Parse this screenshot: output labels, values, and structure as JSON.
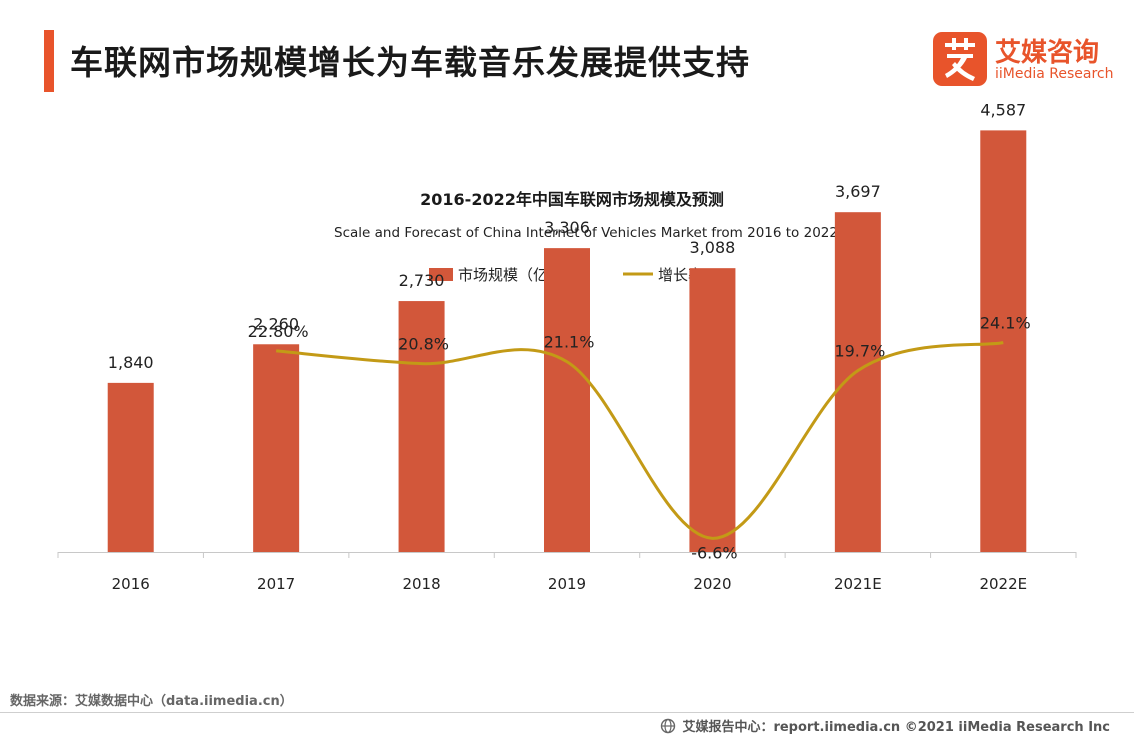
{
  "header": {
    "title": "车联网市场规模增长为车载音乐发展提供支持"
  },
  "logo": {
    "cn": "艾媒咨询",
    "en": "iiMedia Research",
    "icon": "ai-character-logo"
  },
  "colors": {
    "accent": "#e8542b",
    "bar": "#d2573a",
    "line": "#c39a16"
  },
  "chart_data": {
    "type": "bar",
    "title": "2016-2022年中国车联网市场规模及预测",
    "subtitle": "Scale and Forecast of China Internet of Vehicles Market from 2016 to 2022",
    "categories": [
      "2016",
      "2017",
      "2018",
      "2019",
      "2020",
      "2021E",
      "2022E"
    ],
    "series": [
      {
        "name": "市场规模（亿元）",
        "type": "bar",
        "values": [
          1840,
          2260,
          2730,
          3306,
          3088,
          3697,
          4587
        ],
        "labels": [
          "1,840",
          "2,260",
          "2,730",
          "3,306",
          "3,088",
          "3,697",
          "4,587"
        ]
      },
      {
        "name": "增长率",
        "type": "line",
        "values": [
          null,
          22.8,
          20.8,
          21.1,
          -6.6,
          19.7,
          24.1
        ],
        "labels": [
          "",
          "22.80%",
          "20.8%",
          "21.1%",
          "-6.6%",
          "19.7%",
          "24.1%"
        ]
      }
    ],
    "ylim": [
      0,
      4700
    ],
    "legend": "top-center"
  },
  "footer": {
    "source": "数据来源：艾媒数据中心（data.iimedia.cn）",
    "copyright": "艾媒报告中心：report.iimedia.cn ©2021  iiMedia Research  Inc"
  }
}
